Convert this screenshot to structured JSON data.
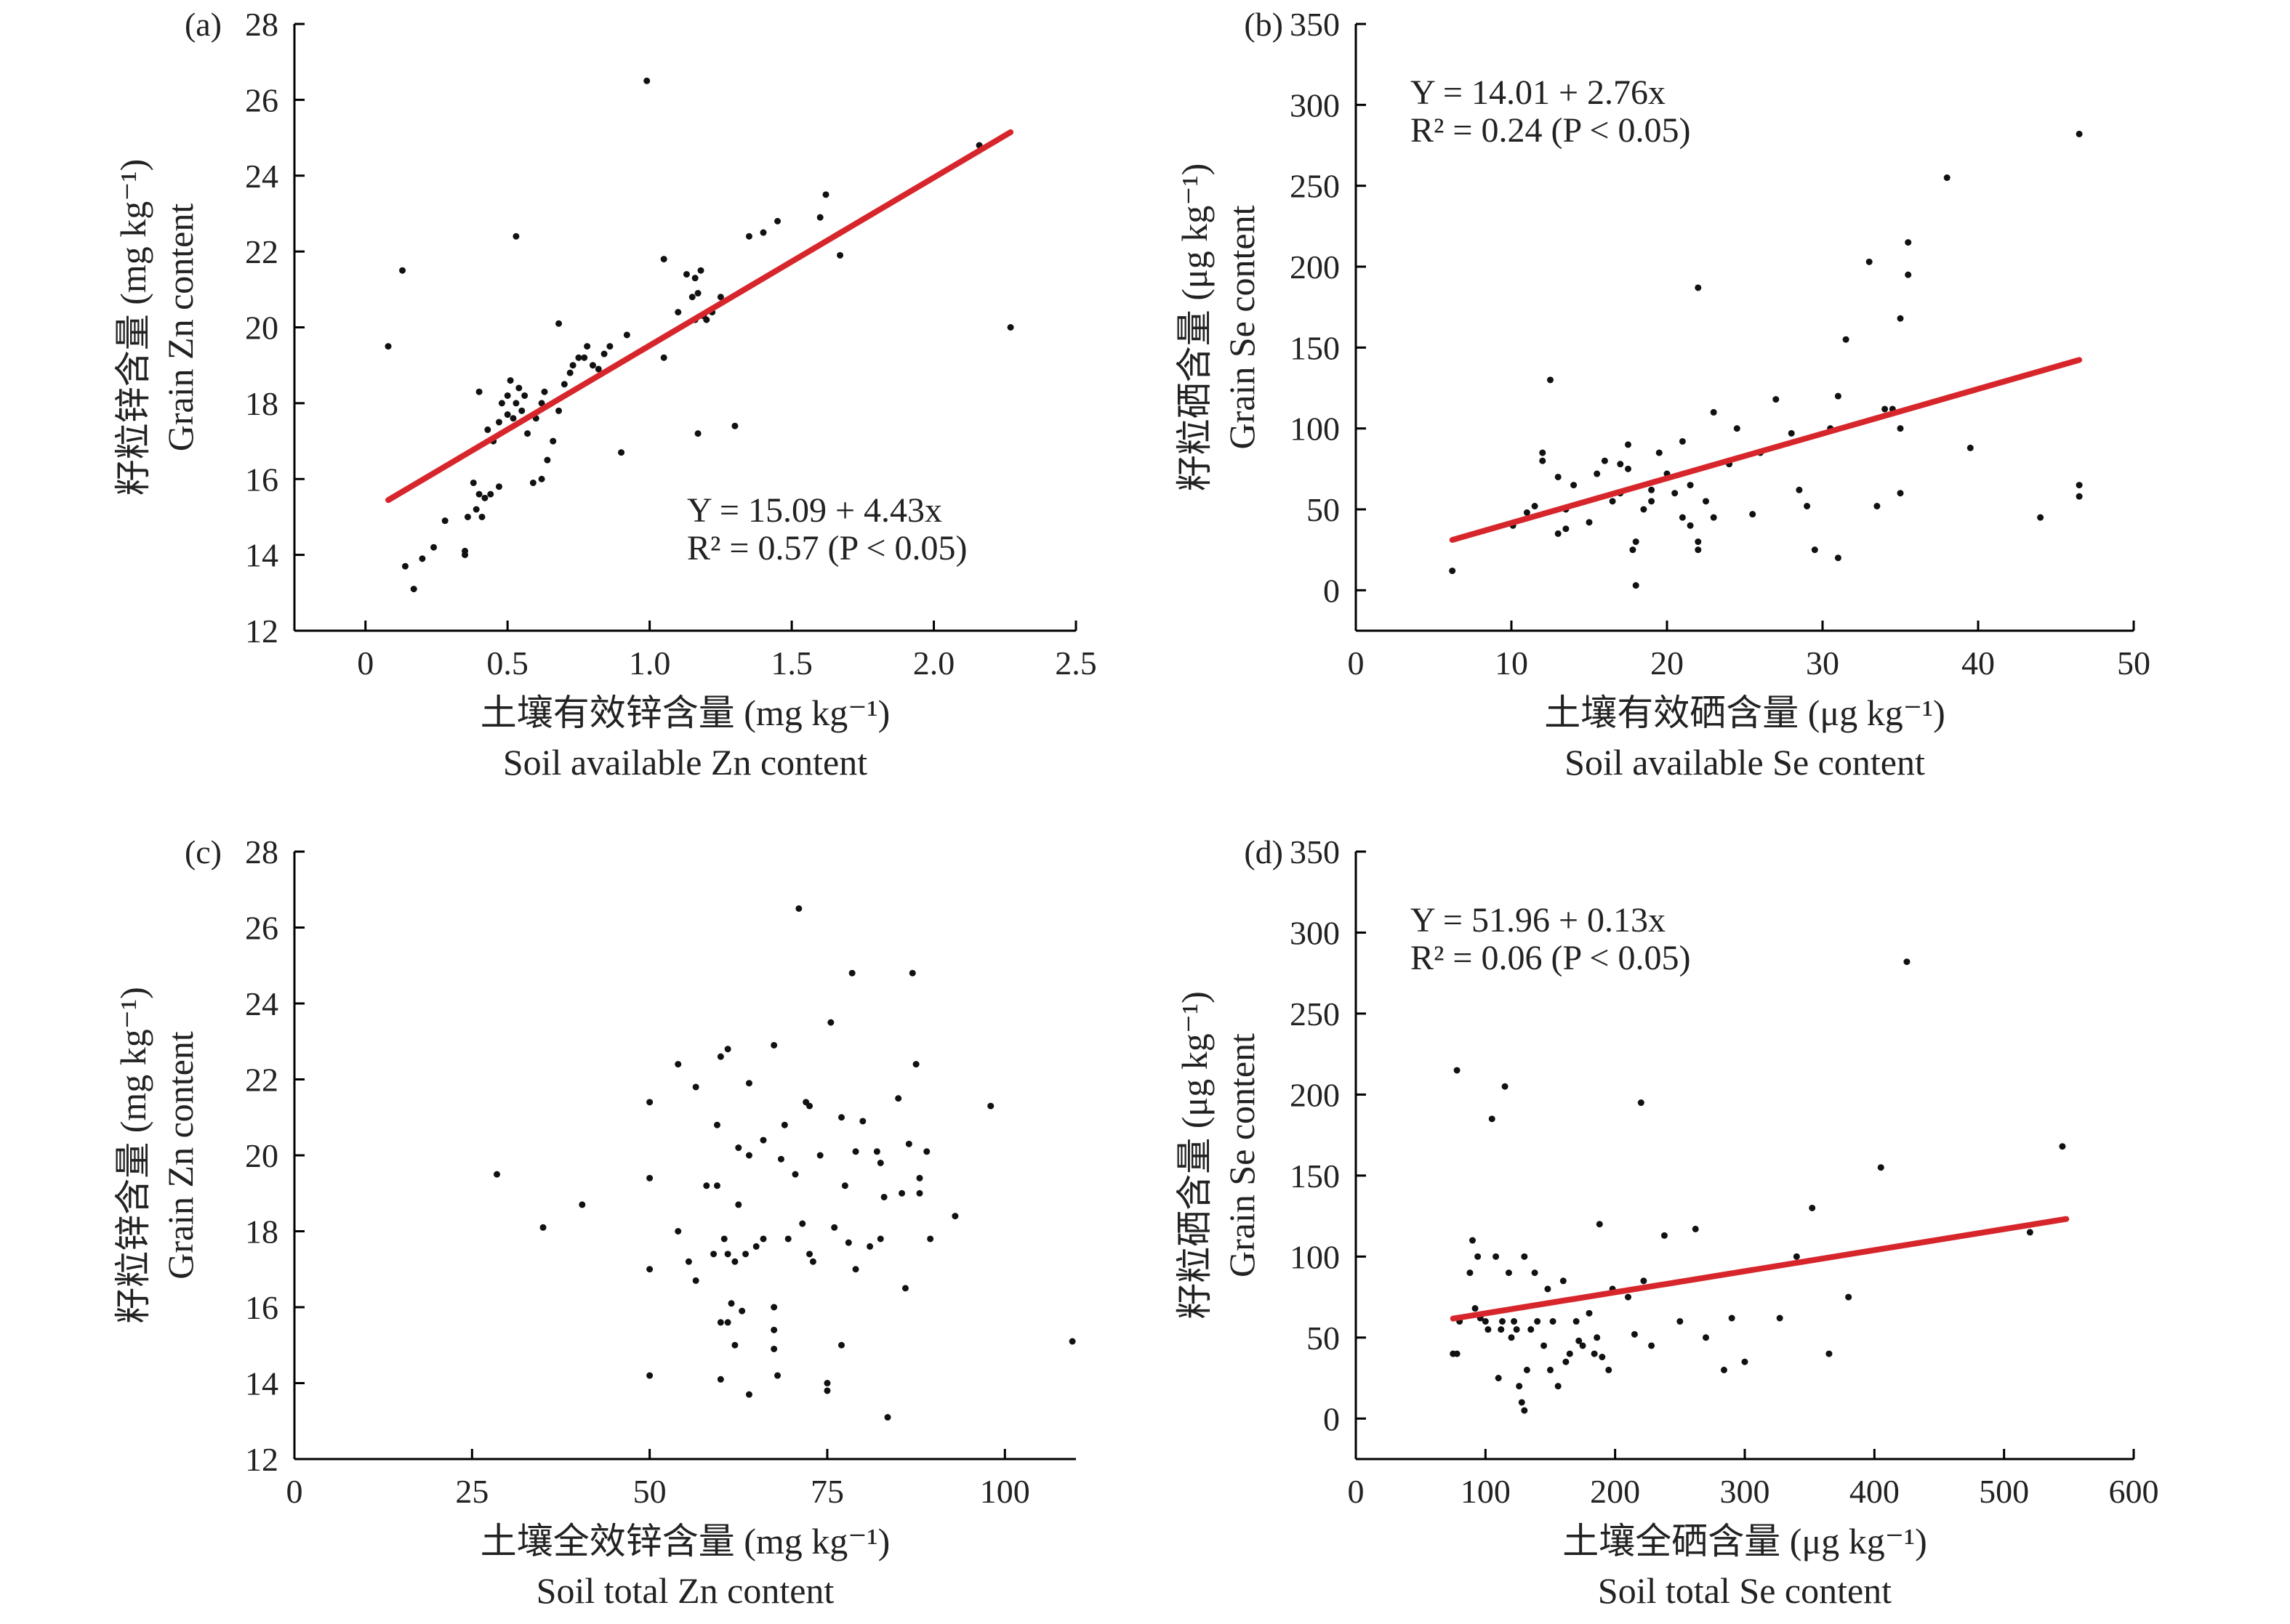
{
  "chart_data": [
    {
      "panel": "(a)",
      "type": "scatter",
      "xlabel_zh": "土壤有效锌含量 (mg kg⁻¹)",
      "xlabel_en": "Soil available Zn content",
      "ylabel_zh": "籽粒锌含量 (mg kg⁻¹)",
      "ylabel_en": "Grain Zn content",
      "xlim": [
        -0.25,
        2.5
      ],
      "ylim": [
        12,
        28
      ],
      "xticks": [
        0,
        0.5,
        1.0,
        1.5,
        2.0,
        2.5
      ],
      "xtick_labels": [
        "0",
        "0.5",
        "1.0",
        "1.5",
        "2.0",
        "2.5"
      ],
      "yticks": [
        12,
        14,
        16,
        18,
        20,
        22,
        24,
        26,
        28
      ],
      "ytick_labels": [
        "12",
        "14",
        "16",
        "18",
        "20",
        "22",
        "24",
        "26",
        "28"
      ],
      "equation": "Y = 15.09 + 4.43x",
      "r2": "R² = 0.57 (P < 0.05)",
      "eq_pos": "bottom-right",
      "fit": {
        "intercept": 15.09,
        "slope": 4.43,
        "x_range": [
          0.08,
          2.27
        ]
      },
      "points": [
        [
          0.08,
          19.5
        ],
        [
          0.13,
          21.5
        ],
        [
          0.14,
          13.7
        ],
        [
          0.17,
          13.1
        ],
        [
          0.2,
          13.9
        ],
        [
          0.24,
          14.2
        ],
        [
          0.28,
          14.9
        ],
        [
          0.35,
          14.1
        ],
        [
          0.35,
          14.0
        ],
        [
          0.36,
          15.0
        ],
        [
          0.38,
          15.9
        ],
        [
          0.39,
          15.2
        ],
        [
          0.4,
          15.6
        ],
        [
          0.4,
          18.3
        ],
        [
          0.41,
          15.0
        ],
        [
          0.42,
          15.5
        ],
        [
          0.43,
          17.3
        ],
        [
          0.44,
          15.6
        ],
        [
          0.45,
          17.0
        ],
        [
          0.47,
          17.5
        ],
        [
          0.47,
          15.8
        ],
        [
          0.48,
          18.0
        ],
        [
          0.5,
          17.7
        ],
        [
          0.5,
          18.2
        ],
        [
          0.51,
          18.6
        ],
        [
          0.52,
          17.6
        ],
        [
          0.53,
          18.0
        ],
        [
          0.53,
          22.4
        ],
        [
          0.54,
          18.4
        ],
        [
          0.55,
          17.8
        ],
        [
          0.56,
          18.2
        ],
        [
          0.57,
          17.2
        ],
        [
          0.59,
          15.9
        ],
        [
          0.6,
          17.6
        ],
        [
          0.62,
          18.0
        ],
        [
          0.62,
          16.0
        ],
        [
          0.63,
          18.3
        ],
        [
          0.64,
          16.5
        ],
        [
          0.66,
          17.0
        ],
        [
          0.68,
          17.8
        ],
        [
          0.68,
          20.1
        ],
        [
          0.7,
          18.5
        ],
        [
          0.72,
          18.8
        ],
        [
          0.73,
          19.0
        ],
        [
          0.75,
          19.2
        ],
        [
          0.77,
          19.2
        ],
        [
          0.78,
          19.5
        ],
        [
          0.8,
          19.0
        ],
        [
          0.82,
          18.9
        ],
        [
          0.84,
          19.3
        ],
        [
          0.86,
          19.5
        ],
        [
          0.9,
          16.7
        ],
        [
          0.92,
          19.8
        ],
        [
          0.99,
          26.5
        ],
        [
          1.05,
          19.2
        ],
        [
          1.05,
          21.8
        ],
        [
          1.1,
          20.4
        ],
        [
          1.13,
          21.4
        ],
        [
          1.15,
          20.8
        ],
        [
          1.16,
          20.2
        ],
        [
          1.16,
          21.3
        ],
        [
          1.17,
          20.9
        ],
        [
          1.17,
          17.2
        ],
        [
          1.18,
          21.5
        ],
        [
          1.19,
          20.3
        ],
        [
          1.2,
          20.2
        ],
        [
          1.22,
          20.4
        ],
        [
          1.25,
          20.8
        ],
        [
          1.3,
          17.4
        ],
        [
          1.35,
          22.4
        ],
        [
          1.4,
          22.5
        ],
        [
          1.45,
          22.8
        ],
        [
          1.6,
          22.9
        ],
        [
          1.62,
          23.5
        ],
        [
          1.67,
          21.9
        ],
        [
          2.16,
          24.8
        ],
        [
          2.27,
          20.0
        ]
      ]
    },
    {
      "panel": "(b)",
      "type": "scatter",
      "xlabel_zh": "土壤有效硒含量 (μg kg⁻¹)",
      "xlabel_en": "Soil available Se content",
      "ylabel_zh": "籽粒硒含量 (μg kg⁻¹)",
      "ylabel_en": "Grain Se content",
      "xlim": [
        0,
        50
      ],
      "ylim": [
        -25,
        350
      ],
      "xticks": [
        0,
        10,
        20,
        30,
        40,
        50
      ],
      "xtick_labels": [
        "0",
        "10",
        "20",
        "30",
        "40",
        "50"
      ],
      "yticks": [
        0,
        50,
        100,
        150,
        200,
        250,
        300,
        350
      ],
      "ytick_labels": [
        "0",
        "50",
        "100",
        "150",
        "200",
        "250",
        "300",
        "350"
      ],
      "equation": "Y = 14.01 + 2.76x",
      "r2": "R² = 0.24 (P < 0.05)",
      "eq_pos": "top-left",
      "fit": {
        "intercept": 14.01,
        "slope": 2.76,
        "x_range": [
          6.2,
          46.5
        ]
      },
      "points": [
        [
          6.2,
          12
        ],
        [
          10.1,
          40
        ],
        [
          11.0,
          48
        ],
        [
          11.5,
          52
        ],
        [
          12.0,
          85
        ],
        [
          12.0,
          80
        ],
        [
          12.5,
          130
        ],
        [
          13.0,
          70
        ],
        [
          13.0,
          35
        ],
        [
          13.5,
          38
        ],
        [
          13.5,
          50
        ],
        [
          14.0,
          65
        ],
        [
          15.0,
          42
        ],
        [
          15.5,
          72
        ],
        [
          16.0,
          80
        ],
        [
          16.5,
          55
        ],
        [
          17.0,
          60
        ],
        [
          17.0,
          78
        ],
        [
          17.5,
          90
        ],
        [
          17.5,
          75
        ],
        [
          17.8,
          25
        ],
        [
          18.0,
          3
        ],
        [
          18.0,
          30
        ],
        [
          18.5,
          50
        ],
        [
          19.0,
          55
        ],
        [
          19.0,
          62
        ],
        [
          19.5,
          85
        ],
        [
          20.0,
          72
        ],
        [
          20.5,
          60
        ],
        [
          21.0,
          92
        ],
        [
          21.0,
          45
        ],
        [
          21.5,
          65
        ],
        [
          21.5,
          40
        ],
        [
          22.0,
          25
        ],
        [
          22.0,
          30
        ],
        [
          22.0,
          187
        ],
        [
          22.5,
          55
        ],
        [
          23.0,
          110
        ],
        [
          23.0,
          45
        ],
        [
          24.0,
          78
        ],
        [
          24.5,
          100
        ],
        [
          25.5,
          47
        ],
        [
          26.0,
          85
        ],
        [
          27.0,
          118
        ],
        [
          28.0,
          97
        ],
        [
          28.5,
          62
        ],
        [
          29.0,
          52
        ],
        [
          29.5,
          25
        ],
        [
          30.5,
          100
        ],
        [
          31.0,
          20
        ],
        [
          31.0,
          120
        ],
        [
          31.5,
          155
        ],
        [
          33.0,
          203
        ],
        [
          33.5,
          52
        ],
        [
          34.0,
          112
        ],
        [
          34.5,
          112
        ],
        [
          35.0,
          60
        ],
        [
          35.0,
          100
        ],
        [
          35.0,
          168
        ],
        [
          35.5,
          215
        ],
        [
          35.5,
          195
        ],
        [
          38.0,
          255
        ],
        [
          39.5,
          88
        ],
        [
          44.0,
          45
        ],
        [
          46.5,
          282
        ],
        [
          46.5,
          58
        ],
        [
          46.5,
          65
        ]
      ]
    },
    {
      "panel": "(c)",
      "type": "scatter",
      "xlabel_zh": "土壤全效锌含量 (mg kg⁻¹)",
      "xlabel_en": "Soil total Zn content",
      "ylabel_zh": "籽粒锌含量 (mg kg⁻¹)",
      "ylabel_en": "Grain Zn content",
      "xlim": [
        0,
        110
      ],
      "ylim": [
        12,
        28
      ],
      "xticks": [
        0,
        25,
        50,
        75,
        100
      ],
      "xtick_labels": [
        "0",
        "25",
        "50",
        "75",
        "100"
      ],
      "yticks": [
        12,
        14,
        16,
        18,
        20,
        22,
        24,
        26,
        28
      ],
      "ytick_labels": [
        "12",
        "14",
        "16",
        "18",
        "20",
        "22",
        "24",
        "26",
        "28"
      ],
      "points": [
        [
          28.5,
          19.5
        ],
        [
          35.0,
          18.1
        ],
        [
          40.5,
          18.7
        ],
        [
          50.0,
          21.4
        ],
        [
          50.0,
          19.4
        ],
        [
          50.0,
          17.0
        ],
        [
          50.0,
          14.2
        ],
        [
          54.0,
          22.4
        ],
        [
          54.0,
          18.0
        ],
        [
          55.5,
          17.2
        ],
        [
          56.5,
          21.8
        ],
        [
          56.5,
          16.7
        ],
        [
          58.0,
          19.2
        ],
        [
          59.0,
          17.4
        ],
        [
          59.5,
          19.2
        ],
        [
          59.5,
          20.8
        ],
        [
          60.0,
          22.6
        ],
        [
          60.0,
          15.6
        ],
        [
          60.0,
          14.1
        ],
        [
          60.5,
          17.8
        ],
        [
          61.0,
          22.8
        ],
        [
          61.0,
          17.4
        ],
        [
          61.0,
          15.6
        ],
        [
          61.5,
          16.1
        ],
        [
          62.0,
          17.2
        ],
        [
          62.0,
          15.0
        ],
        [
          62.5,
          18.7
        ],
        [
          62.5,
          20.2
        ],
        [
          63.0,
          15.9
        ],
        [
          63.5,
          17.4
        ],
        [
          64.0,
          21.9
        ],
        [
          64.0,
          20.0
        ],
        [
          64.0,
          13.7
        ],
        [
          65.0,
          17.6
        ],
        [
          66.0,
          17.8
        ],
        [
          66.0,
          20.4
        ],
        [
          67.5,
          22.9
        ],
        [
          67.5,
          16.0
        ],
        [
          67.5,
          15.4
        ],
        [
          67.5,
          14.9
        ],
        [
          68.0,
          14.2
        ],
        [
          68.5,
          19.9
        ],
        [
          69.0,
          20.8
        ],
        [
          69.5,
          17.8
        ],
        [
          70.5,
          19.5
        ],
        [
          71.0,
          26.5
        ],
        [
          71.5,
          18.2
        ],
        [
          72.0,
          21.4
        ],
        [
          72.5,
          21.3
        ],
        [
          72.5,
          17.4
        ],
        [
          73.0,
          17.2
        ],
        [
          74.0,
          20.0
        ],
        [
          75.0,
          14.0
        ],
        [
          75.0,
          13.8
        ],
        [
          75.5,
          23.5
        ],
        [
          76.0,
          18.1
        ],
        [
          77.0,
          21.0
        ],
        [
          77.0,
          15.0
        ],
        [
          77.5,
          19.2
        ],
        [
          78.0,
          17.7
        ],
        [
          78.5,
          24.8
        ],
        [
          79.0,
          20.1
        ],
        [
          79.0,
          17.0
        ],
        [
          80.0,
          20.9
        ],
        [
          81.0,
          17.6
        ],
        [
          82.0,
          20.1
        ],
        [
          82.5,
          19.8
        ],
        [
          82.5,
          17.8
        ],
        [
          83.0,
          18.9
        ],
        [
          83.5,
          13.1
        ],
        [
          85.5,
          19.0
        ],
        [
          86.0,
          16.5
        ],
        [
          86.5,
          20.3
        ],
        [
          87.0,
          24.8
        ],
        [
          87.5,
          22.4
        ],
        [
          88.0,
          19.4
        ],
        [
          88.0,
          19.0
        ],
        [
          89.0,
          20.1
        ],
        [
          89.5,
          17.8
        ],
        [
          93.0,
          18.4
        ],
        [
          98.0,
          21.3
        ],
        [
          109.5,
          15.1
        ],
        [
          85.0,
          21.5
        ]
      ]
    },
    {
      "panel": "(d)",
      "type": "scatter",
      "xlabel_zh": "土壤全硒含量 (μg kg⁻¹)",
      "xlabel_en": "Soil total Se content",
      "ylabel_zh": "籽粒硒含量 (μg kg⁻¹)",
      "ylabel_en": "Grain Se content",
      "xlim": [
        0,
        600
      ],
      "ylim": [
        -25,
        350
      ],
      "xticks": [
        0,
        100,
        200,
        300,
        400,
        500,
        600
      ],
      "xtick_labels": [
        "0",
        "100",
        "200",
        "300",
        "400",
        "500",
        "600"
      ],
      "yticks": [
        0,
        50,
        100,
        150,
        200,
        250,
        300,
        350
      ],
      "ytick_labels": [
        "0",
        "50",
        "100",
        "150",
        "200",
        "250",
        "300",
        "350"
      ],
      "equation": "Y = 51.96 + 0.13x",
      "r2": "R² = 0.06 (P < 0.05)",
      "eq_pos": "top-left",
      "fit": {
        "intercept": 51.96,
        "slope": 0.13,
        "x_range": [
          75,
          548
        ]
      },
      "points": [
        [
          75,
          40
        ],
        [
          78,
          40
        ],
        [
          78,
          215
        ],
        [
          80,
          60
        ],
        [
          88,
          90
        ],
        [
          90,
          110
        ],
        [
          92,
          68
        ],
        [
          94,
          100
        ],
        [
          96,
          62
        ],
        [
          100,
          60
        ],
        [
          102,
          55
        ],
        [
          105,
          185
        ],
        [
          108,
          100
        ],
        [
          110,
          25
        ],
        [
          112,
          55
        ],
        [
          113,
          60
        ],
        [
          115,
          205
        ],
        [
          118,
          90
        ],
        [
          120,
          50
        ],
        [
          122,
          60
        ],
        [
          124,
          55
        ],
        [
          126,
          20
        ],
        [
          128,
          10
        ],
        [
          130,
          5
        ],
        [
          130,
          100
        ],
        [
          132,
          30
        ],
        [
          135,
          55
        ],
        [
          138,
          90
        ],
        [
          140,
          60
        ],
        [
          145,
          45
        ],
        [
          148,
          80
        ],
        [
          150,
          30
        ],
        [
          152,
          60
        ],
        [
          156,
          20
        ],
        [
          160,
          85
        ],
        [
          162,
          35
        ],
        [
          165,
          40
        ],
        [
          170,
          60
        ],
        [
          172,
          48
        ],
        [
          175,
          45
        ],
        [
          180,
          65
        ],
        [
          184,
          40
        ],
        [
          186,
          50
        ],
        [
          188,
          120
        ],
        [
          190,
          38
        ],
        [
          195,
          30
        ],
        [
          198,
          80
        ],
        [
          210,
          75
        ],
        [
          215,
          52
        ],
        [
          220,
          195
        ],
        [
          222,
          85
        ],
        [
          228,
          45
        ],
        [
          238,
          113
        ],
        [
          250,
          60
        ],
        [
          262,
          117
        ],
        [
          270,
          50
        ],
        [
          284,
          30
        ],
        [
          290,
          62
        ],
        [
          300,
          35
        ],
        [
          327,
          62
        ],
        [
          340,
          100
        ],
        [
          352,
          130
        ],
        [
          365,
          40
        ],
        [
          380,
          75
        ],
        [
          405,
          155
        ],
        [
          425,
          282
        ],
        [
          520,
          115
        ],
        [
          545,
          168
        ]
      ]
    }
  ]
}
